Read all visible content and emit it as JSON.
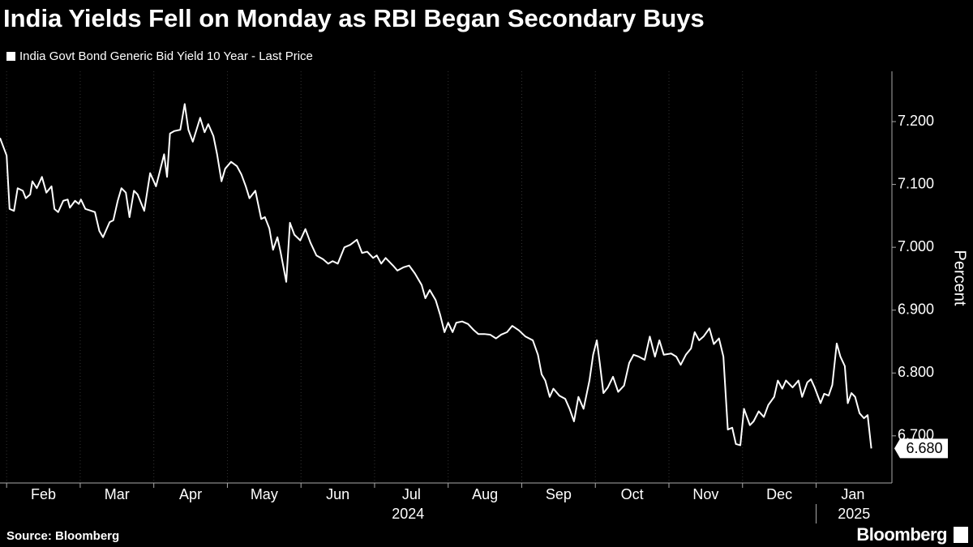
{
  "chart_data": {
    "type": "line",
    "title": "India Yields Fell on Monday as RBI Began Secondary Buys",
    "y_label": "Percent",
    "source": "Source: Bloomberg",
    "logo": "Bloomberg",
    "grid": true,
    "xlim": [
      -0.09,
      12.03
    ],
    "ylim": [
      6.625,
      7.28
    ],
    "yticks": [
      {
        "value": 6.7,
        "label": "6.700"
      },
      {
        "value": 6.8,
        "label": "6.800"
      },
      {
        "value": 6.9,
        "label": "6.900"
      },
      {
        "value": 7.0,
        "label": "7.000"
      },
      {
        "value": 7.1,
        "label": "7.100"
      },
      {
        "value": 7.2,
        "label": "7.200"
      }
    ],
    "xticks": [
      {
        "value": 0,
        "label": "Feb"
      },
      {
        "value": 1,
        "label": "Mar"
      },
      {
        "value": 2,
        "label": "Apr"
      },
      {
        "value": 3,
        "label": "May"
      },
      {
        "value": 4,
        "label": "Jun"
      },
      {
        "value": 5,
        "label": "Jul"
      },
      {
        "value": 6,
        "label": "Aug"
      },
      {
        "value": 7,
        "label": "Sep"
      },
      {
        "value": 8,
        "label": "Oct"
      },
      {
        "value": 9,
        "label": "Nov"
      },
      {
        "value": 10,
        "label": "Dec"
      },
      {
        "value": 11,
        "label": "Jan"
      }
    ],
    "year_ticks": [
      {
        "value": -1,
        "label": "2024"
      },
      {
        "value": 11,
        "label": "2025"
      }
    ],
    "x": [
      -0.09,
      0,
      0.04,
      0.1,
      0.15,
      0.22,
      0.26,
      0.32,
      0.35,
      0.41,
      0.48,
      0.54,
      0.61,
      0.65,
      0.7,
      0.77,
      0.83,
      0.86,
      0.93,
      0.98,
      1.01,
      1.07,
      1.15,
      1.2,
      1.26,
      1.31,
      1.4,
      1.45,
      1.51,
      1.56,
      1.62,
      1.67,
      1.73,
      1.78,
      1.87,
      1.95,
      2.03,
      2.08,
      2.14,
      2.18,
      2.22,
      2.28,
      2.36,
      2.42,
      2.47,
      2.53,
      2.58,
      2.63,
      2.69,
      2.74,
      2.81,
      2.86,
      2.92,
      2.97,
      3.05,
      3.13,
      3.19,
      3.25,
      3.3,
      3.38,
      3.46,
      3.51,
      3.57,
      3.62,
      3.68,
      3.72,
      3.8,
      3.85,
      3.91,
      3.99,
      4.06,
      4.13,
      4.21,
      4.3,
      4.37,
      4.43,
      4.5,
      4.59,
      4.67,
      4.76,
      4.83,
      4.9,
      4.98,
      5.03,
      5.09,
      5.15,
      5.25,
      5.31,
      5.39,
      5.47,
      5.55,
      5.64,
      5.69,
      5.75,
      5.83,
      5.89,
      5.95,
      6.0,
      6.06,
      6.11,
      6.19,
      6.27,
      6.35,
      6.41,
      6.49,
      6.57,
      6.65,
      6.72,
      6.8,
      6.87,
      6.96,
      7.05,
      7.15,
      7.22,
      7.27,
      7.32,
      7.38,
      7.43,
      7.51,
      7.59,
      7.65,
      7.71,
      7.77,
      7.84,
      7.92,
      7.97,
      8.02,
      8.06,
      8.11,
      8.17,
      8.24,
      8.31,
      8.39,
      8.46,
      8.52,
      8.59,
      8.67,
      8.74,
      8.81,
      8.87,
      8.93,
      9.03,
      9.1,
      9.16,
      9.23,
      9.3,
      9.35,
      9.41,
      9.47,
      9.55,
      9.61,
      9.68,
      9.74,
      9.8,
      9.86,
      9.91,
      9.97,
      10.02,
      10.1,
      10.15,
      10.22,
      10.29,
      10.35,
      10.43,
      10.48,
      10.54,
      10.59,
      10.68,
      10.76,
      10.81,
      10.88,
      10.93,
      10.98,
      11.06,
      11.11,
      11.17,
      11.22,
      11.28,
      11.33,
      11.39,
      11.43,
      11.48,
      11.53,
      11.59,
      11.65,
      11.7,
      11.75
    ],
    "series": [
      {
        "name": "India Govt Bond Generic Bid Yield 10 Year - Last Price",
        "color": "#ffffff",
        "values": [
          7.174,
          7.146,
          7.061,
          7.058,
          7.094,
          7.09,
          7.078,
          7.084,
          7.105,
          7.094,
          7.112,
          7.087,
          7.097,
          7.061,
          7.056,
          7.074,
          7.076,
          7.063,
          7.074,
          7.069,
          7.076,
          7.061,
          7.058,
          7.056,
          7.026,
          7.016,
          7.04,
          7.043,
          7.074,
          7.094,
          7.087,
          7.048,
          7.09,
          7.084,
          7.058,
          7.118,
          7.097,
          7.12,
          7.148,
          7.112,
          7.181,
          7.185,
          7.187,
          7.228,
          7.187,
          7.168,
          7.187,
          7.206,
          7.183,
          7.196,
          7.177,
          7.148,
          7.105,
          7.125,
          7.136,
          7.129,
          7.116,
          7.097,
          7.078,
          7.09,
          7.045,
          7.048,
          7.03,
          6.996,
          7.016,
          6.994,
          6.945,
          7.039,
          7.02,
          7.011,
          7.029,
          7.007,
          6.987,
          6.981,
          6.974,
          6.978,
          6.974,
          7.0,
          7.004,
          7.012,
          6.991,
          6.993,
          6.983,
          6.987,
          6.974,
          6.983,
          6.971,
          6.963,
          6.968,
          6.971,
          6.958,
          6.94,
          6.919,
          6.932,
          6.916,
          6.893,
          6.865,
          6.88,
          6.865,
          6.88,
          6.882,
          6.878,
          6.868,
          6.862,
          6.862,
          6.861,
          6.855,
          6.861,
          6.865,
          6.875,
          6.868,
          6.858,
          6.852,
          6.829,
          6.798,
          6.788,
          6.762,
          6.775,
          6.764,
          6.759,
          6.743,
          6.723,
          6.762,
          6.743,
          6.788,
          6.829,
          6.852,
          6.816,
          6.768,
          6.777,
          6.794,
          6.77,
          6.78,
          6.816,
          6.829,
          6.826,
          6.821,
          6.858,
          6.826,
          6.852,
          6.829,
          6.831,
          6.826,
          6.813,
          6.829,
          6.839,
          6.865,
          6.852,
          6.858,
          6.871,
          6.846,
          6.855,
          6.826,
          6.71,
          6.713,
          6.687,
          6.685,
          6.743,
          6.717,
          6.723,
          6.739,
          6.73,
          6.749,
          6.762,
          6.788,
          6.775,
          6.788,
          6.777,
          6.788,
          6.762,
          6.785,
          6.79,
          6.777,
          6.752,
          6.767,
          6.764,
          6.781,
          6.847,
          6.826,
          6.811,
          6.752,
          6.768,
          6.762,
          6.736,
          6.728,
          6.733,
          6.68
        ],
        "value_labels": [
          null,
          null,
          null,
          null,
          null,
          null,
          null,
          null,
          null,
          null,
          null,
          null,
          null,
          null,
          null,
          null,
          null,
          null,
          null,
          null,
          null,
          null,
          null,
          null,
          null,
          null,
          null,
          null,
          null,
          null,
          null,
          null,
          null,
          null,
          null,
          null,
          null,
          null,
          null,
          null,
          null,
          null,
          null,
          null,
          null,
          null,
          null,
          null,
          null,
          null,
          null,
          null,
          null,
          null,
          null,
          null,
          null,
          null,
          null,
          null,
          null,
          null,
          null,
          null,
          null,
          null,
          null,
          null,
          null,
          null,
          null,
          null,
          null,
          null,
          null,
          null,
          null,
          null,
          null,
          null,
          null,
          null,
          null,
          null,
          null,
          null,
          null,
          null,
          null,
          null,
          null,
          null,
          null,
          null,
          null,
          null,
          null,
          null,
          null,
          null,
          null,
          null,
          null,
          null,
          null,
          null,
          null,
          null,
          null,
          null,
          null,
          null,
          null,
          null,
          null,
          null,
          null,
          null,
          null,
          null,
          null,
          null,
          null,
          null,
          null,
          null,
          null,
          null,
          null,
          null,
          null,
          null,
          null,
          null,
          null,
          null,
          null,
          null,
          null,
          null,
          null,
          null,
          null,
          null,
          null,
          null,
          null,
          null,
          null,
          null,
          null,
          null,
          null,
          null,
          null,
          null,
          null,
          null,
          null,
          null,
          null,
          null,
          null,
          null,
          null,
          null,
          null,
          null,
          null,
          null,
          null,
          null,
          null,
          null,
          null,
          null,
          null,
          null,
          null,
          null,
          null,
          null,
          null,
          null,
          null,
          null,
          "6.680"
        ]
      }
    ]
  }
}
